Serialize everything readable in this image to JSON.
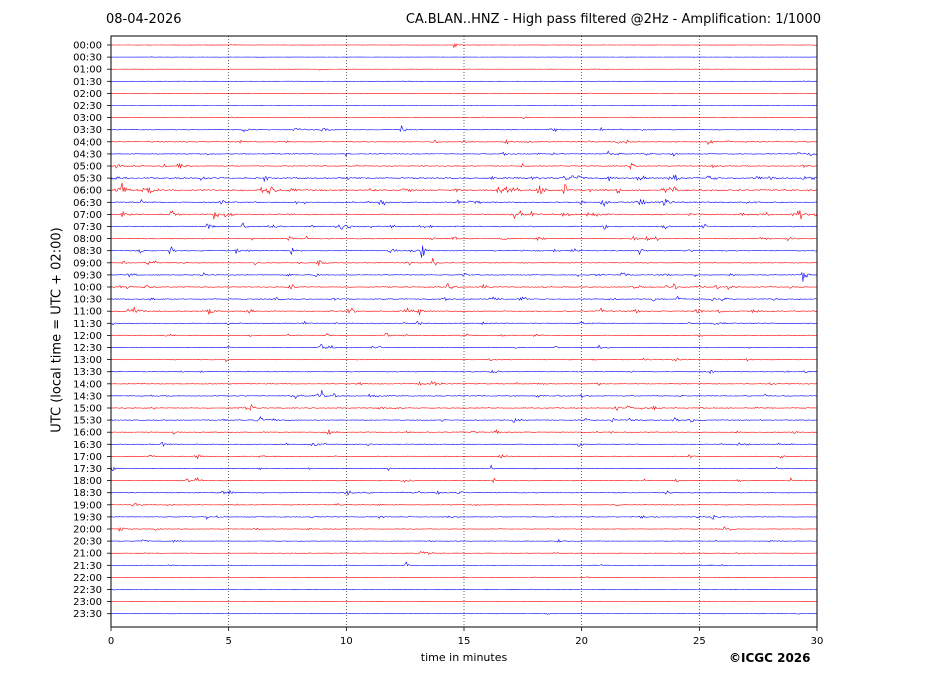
{
  "header": {
    "date": "08-04-2026",
    "title": "CA.BLAN..HNZ - High pass filtered @2Hz - Amplification: 1/1000"
  },
  "footer": {
    "copyright": "©ICGC 2026"
  },
  "colors": {
    "trace_a": "#ff0000",
    "trace_b": "#0000ff",
    "grid": "#000000"
  },
  "chart_data": {
    "type": "line",
    "xlabel": "time in minutes",
    "ylabel": "UTC (local time = UTC + 02:00)",
    "xlim": [
      0,
      30
    ],
    "x_ticks": [
      0,
      5,
      10,
      15,
      20,
      25,
      30
    ],
    "x_tick_labels": [
      "0",
      "5",
      "10",
      "15",
      "20",
      "25",
      "30"
    ],
    "vertical_grid": [
      5,
      10,
      15,
      20,
      25
    ],
    "grid_style": "dotted",
    "series_colors": "alternating red and blue per half-hour row",
    "rows": [
      "00:00",
      "00:30",
      "01:00",
      "01:30",
      "02:00",
      "02:30",
      "03:00",
      "03:30",
      "04:00",
      "04:30",
      "05:00",
      "05:30",
      "06:00",
      "06:30",
      "07:00",
      "07:30",
      "08:00",
      "08:30",
      "09:00",
      "09:30",
      "10:00",
      "10:30",
      "11:00",
      "11:30",
      "12:00",
      "12:30",
      "13:00",
      "13:30",
      "14:00",
      "14:30",
      "15:00",
      "15:30",
      "16:00",
      "16:30",
      "17:00",
      "17:30",
      "18:00",
      "18:30",
      "19:00",
      "19:30",
      "20:00",
      "20:30",
      "21:00",
      "21:30",
      "22:00",
      "22:30",
      "23:00",
      "23:30"
    ],
    "noise_level": [
      0.3,
      0.2,
      0.4,
      0.4,
      0.2,
      0.2,
      0.4,
      1.1,
      1.2,
      1.2,
      1.3,
      2.1,
      2.3,
      1.8,
      1.8,
      1.6,
      1.3,
      1.3,
      1.0,
      1.2,
      1.5,
      1.4,
      1.6,
      1.2,
      1.2,
      1.0,
      1.0,
      1.0,
      1.0,
      1.2,
      1.3,
      1.2,
      1.2,
      1.1,
      1.0,
      1.0,
      1.0,
      1.1,
      0.9,
      1.0,
      0.9,
      0.8,
      0.7,
      0.5,
      0.3,
      0.3,
      0.3,
      0.3
    ],
    "events": [
      {
        "row": "00:00",
        "minute": 14.6,
        "amplitude": 8
      },
      {
        "row": "07:00",
        "minute": 4.4,
        "amplitude": 9
      },
      {
        "row": "07:00",
        "minute": 29.3,
        "amplitude": 7
      },
      {
        "row": "08:30",
        "minute": 2.5,
        "amplitude": 9
      },
      {
        "row": "08:30",
        "minute": 13.2,
        "amplitude": 14
      },
      {
        "row": "09:00",
        "minute": 13.7,
        "amplitude": 9
      },
      {
        "row": "09:30",
        "minute": 29.4,
        "amplitude": 14
      },
      {
        "row": "11:00",
        "minute": 13.1,
        "amplitude": 5
      },
      {
        "row": "12:30",
        "minute": 8.9,
        "amplitude": 5
      },
      {
        "row": "14:30",
        "minute": 11.0,
        "amplitude": 4
      },
      {
        "row": "21:00",
        "minute": 13.2,
        "amplitude": 5
      },
      {
        "row": "21:30",
        "minute": 12.5,
        "amplitude": 8
      },
      {
        "row": "21:30",
        "minute": 25.9,
        "amplitude": 4
      }
    ]
  }
}
